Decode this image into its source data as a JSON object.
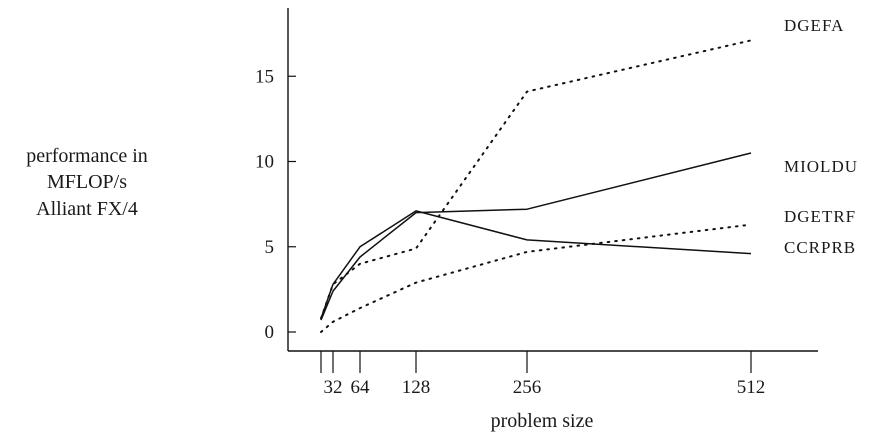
{
  "chart_data": {
    "type": "line",
    "title": "",
    "xlabel": "problem size",
    "ylabel_lines": [
      "performance in",
      "MFLOP/s",
      "Alliant FX/4"
    ],
    "x": [
      16,
      32,
      64,
      128,
      256,
      512
    ],
    "xticks": [
      16,
      32,
      64,
      128,
      256,
      512
    ],
    "xtick_labels": [
      "",
      "32",
      "64",
      "128",
      "256",
      "512"
    ],
    "yticks": [
      0,
      5,
      10,
      15
    ],
    "ylim": [
      -1,
      18.5
    ],
    "grid": false,
    "legend": "none (series labelled at right end of lines)",
    "series": [
      {
        "name": "DGEFA",
        "style": "dotted",
        "values": [
          0.8,
          2.8,
          4.0,
          4.9,
          14.1,
          17.1
        ]
      },
      {
        "name": "MIOLDU",
        "style": "solid",
        "values": [
          0.7,
          2.4,
          4.4,
          7.0,
          7.2,
          10.5
        ]
      },
      {
        "name": "DGETRF",
        "style": "dotted",
        "values": [
          0.0,
          0.6,
          1.4,
          2.9,
          4.7,
          6.3
        ]
      },
      {
        "name": "CCRPRB",
        "style": "solid",
        "values": [
          0.8,
          2.8,
          5.0,
          7.1,
          5.4,
          4.6
        ]
      }
    ]
  }
}
